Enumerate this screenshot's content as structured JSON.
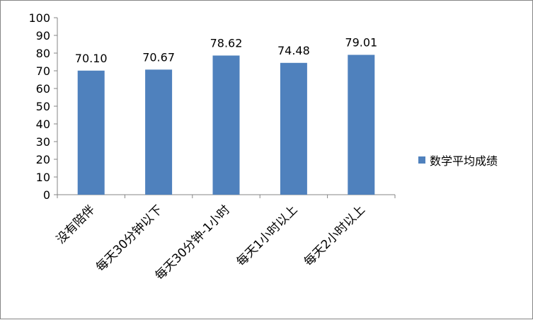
{
  "chart_data": {
    "type": "bar",
    "title": "",
    "xlabel": "",
    "ylabel": "",
    "categories": [
      "没有陪伴",
      "每天30分钟以下",
      "每天30分钟-1小时",
      "每天1小时以上",
      "每天2小时以上"
    ],
    "series": [
      {
        "name": "数学平均成绩",
        "values": [
          70.1,
          70.67,
          78.62,
          74.48,
          79.01
        ],
        "labels": [
          "70.10",
          "70.67",
          "78.62",
          "74.48",
          "79.01"
        ],
        "color": "#4F81BD"
      }
    ],
    "ylim": [
      0,
      100
    ],
    "yticks": [
      0,
      10,
      20,
      30,
      40,
      50,
      60,
      70,
      80,
      90,
      100
    ],
    "grid": false,
    "legend": "right"
  }
}
